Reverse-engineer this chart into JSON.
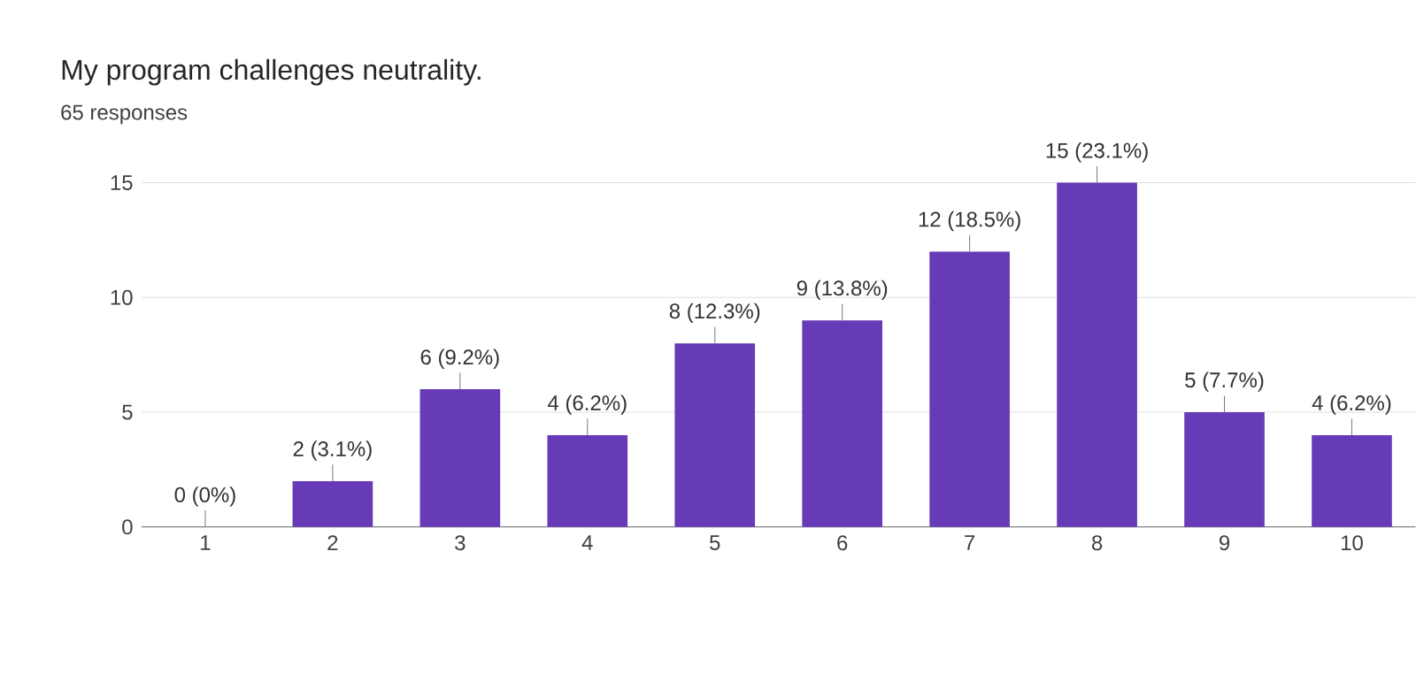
{
  "chart_data": {
    "type": "bar",
    "title": "My program challenges neutrality.",
    "subtitle": "65 responses",
    "categories": [
      "1",
      "2",
      "3",
      "4",
      "5",
      "6",
      "7",
      "8",
      "9",
      "10"
    ],
    "values": [
      0,
      2,
      6,
      4,
      8,
      9,
      12,
      15,
      5,
      4
    ],
    "value_labels": [
      "0 (0%)",
      "2 (3.1%)",
      "6 (9.2%)",
      "4 (6.2%)",
      "8 (12.3%)",
      "9 (13.8%)",
      "12 (18.5%)",
      "15 (23.1%)",
      "5 (7.7%)",
      "4 (6.2%)"
    ],
    "color": "#673ab7",
    "ylim": [
      0,
      15
    ],
    "yticks": [
      0,
      5,
      10,
      15
    ],
    "grid": "y"
  }
}
